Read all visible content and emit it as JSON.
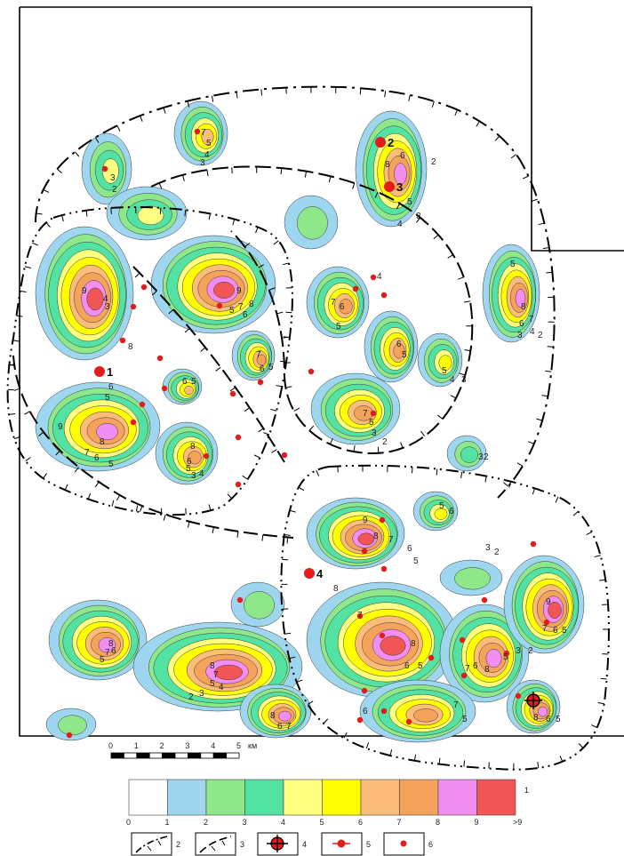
{
  "palette": {
    "c0": "#ffffff",
    "c1": "#9fd6ef",
    "c2": "#8ee88a",
    "c3": "#52e2a4",
    "c4": "#ffff80",
    "c5": "#ffff00",
    "c6": "#fcbd7a",
    "c7": "#f5a35a",
    "c8": "#f28ef2",
    "c9": "#f25555"
  },
  "scale_bar": {
    "ticks": [
      "0",
      "1",
      "2",
      "3",
      "4",
      "5"
    ],
    "unit": "км"
  },
  "color_legend": {
    "boundaries": [
      "0",
      "1",
      "2",
      "3",
      "4",
      "5",
      "6",
      "7",
      "8",
      "9",
      ">9"
    ],
    "number": "1"
  },
  "symbol_legend": [
    {
      "number": "2",
      "icon": "boundary-dash-dot-icon"
    },
    {
      "number": "3",
      "icon": "boundary-dash-icon"
    },
    {
      "number": "4",
      "icon": "large-well-icon"
    },
    {
      "number": "5",
      "icon": "well-icon"
    },
    {
      "number": "6",
      "icon": "small-point-icon"
    }
  ],
  "wells": [
    {
      "label": "1"
    },
    {
      "label": "2"
    },
    {
      "label": "3"
    },
    {
      "label": "4"
    }
  ],
  "contour_labels": [
    "2",
    "3",
    "4",
    "5",
    "6",
    "7",
    "8",
    "9"
  ]
}
